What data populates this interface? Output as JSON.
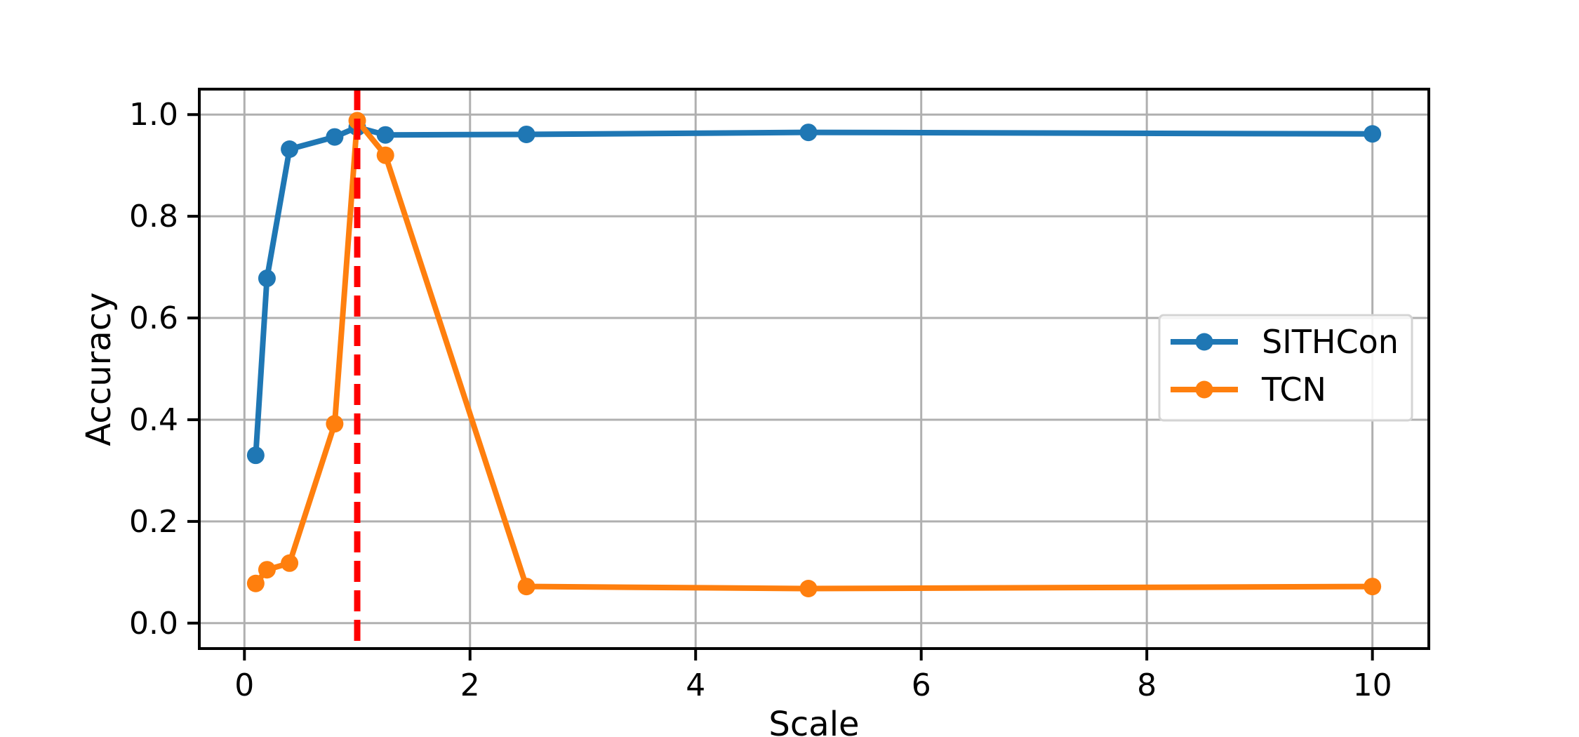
{
  "chart_data": {
    "type": "line",
    "title": "",
    "xlabel": "Scale",
    "ylabel": "Accuracy",
    "xlim": [
      -0.4,
      10.5
    ],
    "ylim": [
      -0.05,
      1.05
    ],
    "xticks": [
      0,
      2,
      4,
      6,
      8,
      10
    ],
    "xtick_labels": [
      "0",
      "2",
      "4",
      "6",
      "8",
      "10"
    ],
    "yticks": [
      0.0,
      0.2,
      0.4,
      0.6,
      0.8,
      1.0
    ],
    "ytick_labels": [
      "0.0",
      "0.2",
      "0.4",
      "0.6",
      "0.8",
      "1.0"
    ],
    "grid": true,
    "legend_position": "center-right",
    "series": [
      {
        "name": "SITHCon",
        "color": "#1f77b4",
        "x": [
          0.1,
          0.2,
          0.4,
          0.8,
          1.0,
          1.25,
          2.5,
          5.0,
          10.0
        ],
        "y": [
          0.33,
          0.678,
          0.932,
          0.956,
          0.975,
          0.96,
          0.961,
          0.965,
          0.962
        ]
      },
      {
        "name": "TCN",
        "color": "#ff7f0e",
        "x": [
          0.1,
          0.2,
          0.4,
          0.8,
          1.0,
          1.25,
          2.5,
          5.0,
          10.0
        ],
        "y": [
          0.078,
          0.105,
          0.118,
          0.392,
          0.988,
          0.92,
          0.072,
          0.068,
          0.072
        ]
      }
    ],
    "reference_line": {
      "orientation": "vertical",
      "x": 1.0,
      "color": "#ff0000",
      "style": "dashed"
    }
  }
}
